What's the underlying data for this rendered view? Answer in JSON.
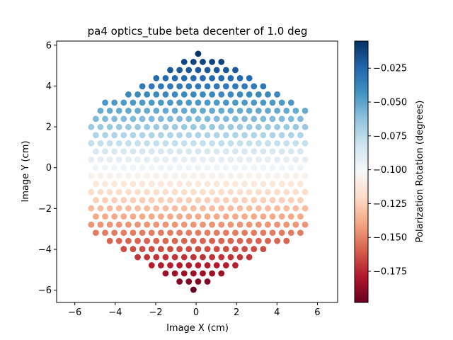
{
  "chart_data": {
    "type": "scatter",
    "title": "pa4 optics_tube beta decenter of 1.0 deg",
    "xlabel": "Image X (cm)",
    "ylabel": "Image Y (cm)",
    "xlim": [
      -6.9,
      7.0
    ],
    "ylim": [
      -6.6,
      6.2
    ],
    "xticks": [
      -6,
      -4,
      -2,
      0,
      2,
      4,
      6
    ],
    "yticks": [
      -6,
      -4,
      -2,
      0,
      2,
      4,
      6
    ],
    "xtick_labels": [
      "−6",
      "−4",
      "−2",
      "0",
      "2",
      "4",
      "6"
    ],
    "ytick_labels": [
      "−6",
      "−4",
      "−2",
      "0",
      "2",
      "4",
      "6"
    ],
    "grid": false,
    "colormap": "RdBu",
    "colorbar": {
      "label": "Polarization Rotation (degrees)",
      "min": -0.198,
      "max": -0.005,
      "ticks": [
        -0.175,
        -0.15,
        -0.125,
        -0.1,
        -0.075,
        -0.05,
        -0.025
      ],
      "tick_labels": [
        "−0.175",
        "−0.150",
        "−0.125",
        "−0.100",
        "−0.075",
        "−0.050",
        "−0.025"
      ]
    },
    "pattern": {
      "description": "hexagonal array of detector points on a hex-packed grid; color varies linearly with Image Y",
      "point_spacing_cm": 0.46,
      "hex_vertices_cm": [
        [
          0.2,
          5.65
        ],
        [
          5.3,
          2.8
        ],
        [
          5.3,
          -3.0
        ],
        [
          0.0,
          -6.0
        ],
        [
          -5.1,
          -3.0
        ],
        [
          -5.1,
          2.75
        ]
      ],
      "value_at_y_min": -0.198,
      "value_at_y_max": -0.005,
      "y_min": -6.0,
      "y_max": 5.65
    }
  },
  "colors": {
    "background": "#ffffff",
    "axes": "#000000"
  }
}
